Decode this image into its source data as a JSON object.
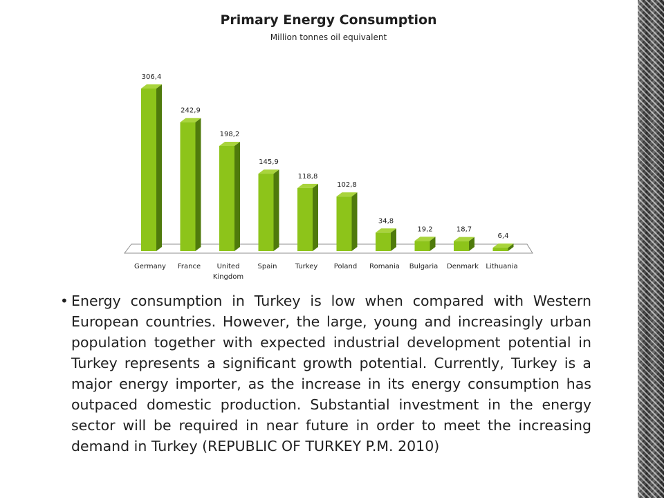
{
  "chart_data": {
    "type": "bar",
    "title": "Primary Energy Consumption",
    "subtitle": "Million tonnes oil equivalent",
    "categories": [
      "Germany",
      "France",
      "United Kingdom",
      "Spain",
      "Turkey",
      "Poland",
      "Romania",
      "Bulgaria",
      "Denmark",
      "Lithuania"
    ],
    "category_lines": [
      [
        "Germany"
      ],
      [
        "France"
      ],
      [
        "United",
        "Kingdom"
      ],
      [
        "Spain"
      ],
      [
        "Turkey"
      ],
      [
        "Poland"
      ],
      [
        "Romania"
      ],
      [
        "Bulgaria"
      ],
      [
        "Denmark"
      ],
      [
        "Lithuania"
      ]
    ],
    "values": [
      306.4,
      242.9,
      198.2,
      145.9,
      118.8,
      102.8,
      34.8,
      19.2,
      18.7,
      6.4
    ],
    "value_labels": [
      "306,4",
      "242,9",
      "198,2",
      "145,9",
      "118,8",
      "102,8",
      "34,8",
      "19,2",
      "18,7",
      "6,4"
    ],
    "ylim": [
      0,
      306.4
    ],
    "grid": false,
    "legend": "none",
    "colors": {
      "bar_front": "#8dc41a",
      "bar_side": "#4f7a0c",
      "bar_top": "#a9d43c",
      "floor": "#ffffff",
      "floor_edge": "#8f8f8f"
    }
  },
  "body": {
    "bullet": "•",
    "text": "Energy consumption in Turkey is low when compared with Western European countries. However, the large,  young and increasingly urban population together with expected industrial development potential in Turkey  represents a significant growth potential. Currently, Turkey is a major energy importer, as the increase in its energy consumption has outpaced domestic production. Substantial investment in the energy sector will be required in near future in order to meet the increasing demand in Turkey (REPUBLIC OF TURKEY P.M. 2010)"
  }
}
